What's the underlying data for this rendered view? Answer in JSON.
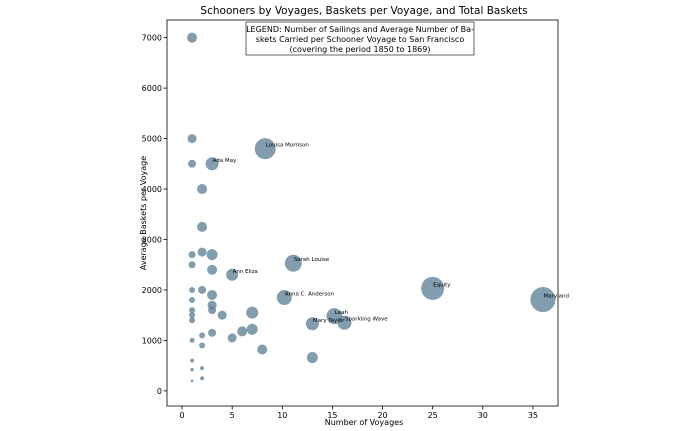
{
  "chart_data": {
    "type": "scatter",
    "title": "Schooners by Voyages, Baskets per Voyage, and Total Baskets",
    "xlabel": "Number of Voyages",
    "ylabel": "Average Baskets per Voyage",
    "xlim": [
      -1.5,
      37.5
    ],
    "ylim": [
      -300,
      7350
    ],
    "xticks": [
      0,
      5,
      10,
      15,
      20,
      25,
      30,
      35
    ],
    "yticks": [
      0,
      1000,
      2000,
      3000,
      4000,
      5000,
      6000,
      7000
    ],
    "legend": {
      "lines": [
        "LEGEND: Number of Sailings and Average Number of Ba-",
        "skets Carried per Schooner Voyage to San Francisco",
        "(covering the period 1850 to 1869)"
      ],
      "placement": "top-center"
    },
    "grid": false,
    "color": "#5f8196",
    "points": [
      {
        "x": 1,
        "y": 7000,
        "r": 5
      },
      {
        "x": 1,
        "y": 5000,
        "r": 4.5
      },
      {
        "x": 1,
        "y": 4500,
        "r": 4
      },
      {
        "x": 1,
        "y": 2700,
        "r": 3.5
      },
      {
        "x": 1,
        "y": 2500,
        "r": 3.5
      },
      {
        "x": 1,
        "y": 2000,
        "r": 3
      },
      {
        "x": 1,
        "y": 1800,
        "r": 3
      },
      {
        "x": 1,
        "y": 1600,
        "r": 3
      },
      {
        "x": 1,
        "y": 1500,
        "r": 3
      },
      {
        "x": 1,
        "y": 1400,
        "r": 3
      },
      {
        "x": 1,
        "y": 1000,
        "r": 2.5
      },
      {
        "x": 1,
        "y": 600,
        "r": 2
      },
      {
        "x": 1,
        "y": 420,
        "r": 1.8
      },
      {
        "x": 1,
        "y": 200,
        "r": 1.4
      },
      {
        "x": 2,
        "y": 4000,
        "r": 5
      },
      {
        "x": 2,
        "y": 3250,
        "r": 5
      },
      {
        "x": 2,
        "y": 2750,
        "r": 4.5
      },
      {
        "x": 2,
        "y": 2000,
        "r": 4
      },
      {
        "x": 2,
        "y": 1100,
        "r": 3
      },
      {
        "x": 2,
        "y": 900,
        "r": 3
      },
      {
        "x": 2,
        "y": 450,
        "r": 2
      },
      {
        "x": 2,
        "y": 250,
        "r": 2
      },
      {
        "x": 3,
        "y": 4500,
        "r": 6.5,
        "label": "Ada May"
      },
      {
        "x": 3,
        "y": 2700,
        "r": 5.5
      },
      {
        "x": 3,
        "y": 2400,
        "r": 5
      },
      {
        "x": 3,
        "y": 1900,
        "r": 5
      },
      {
        "x": 3,
        "y": 1700,
        "r": 4.5
      },
      {
        "x": 3,
        "y": 1600,
        "r": 4
      },
      {
        "x": 3,
        "y": 1150,
        "r": 4
      },
      {
        "x": 4,
        "y": 1500,
        "r": 4.5
      },
      {
        "x": 5,
        "y": 2300,
        "r": 6,
        "label": "Ann Eliza"
      },
      {
        "x": 5,
        "y": 1050,
        "r": 4.5
      },
      {
        "x": 6,
        "y": 1180,
        "r": 5
      },
      {
        "x": 7,
        "y": 1550,
        "r": 6
      },
      {
        "x": 7,
        "y": 1220,
        "r": 5.5
      },
      {
        "x": 8,
        "y": 820,
        "r": 5
      },
      {
        "x": 8.3,
        "y": 4800,
        "r": 10.5,
        "label": "Louisa Morrison"
      },
      {
        "x": 10.2,
        "y": 1850,
        "r": 7.5,
        "label": "Anna C. Anderson"
      },
      {
        "x": 11.1,
        "y": 2530,
        "r": 8.5,
        "label": "Sarah Louise"
      },
      {
        "x": 13,
        "y": 1330,
        "r": 6.5,
        "label": "Mary Taylor"
      },
      {
        "x": 13,
        "y": 660,
        "r": 5.5
      },
      {
        "x": 15.2,
        "y": 1480,
        "r": 8,
        "label": "Leah"
      },
      {
        "x": 16.2,
        "y": 1350,
        "r": 7,
        "label": "Sparkling Wave"
      },
      {
        "x": 25,
        "y": 2030,
        "r": 11.5,
        "label": "Equity"
      },
      {
        "x": 36,
        "y": 1810,
        "r": 12.5,
        "label": "Maryland"
      }
    ]
  }
}
